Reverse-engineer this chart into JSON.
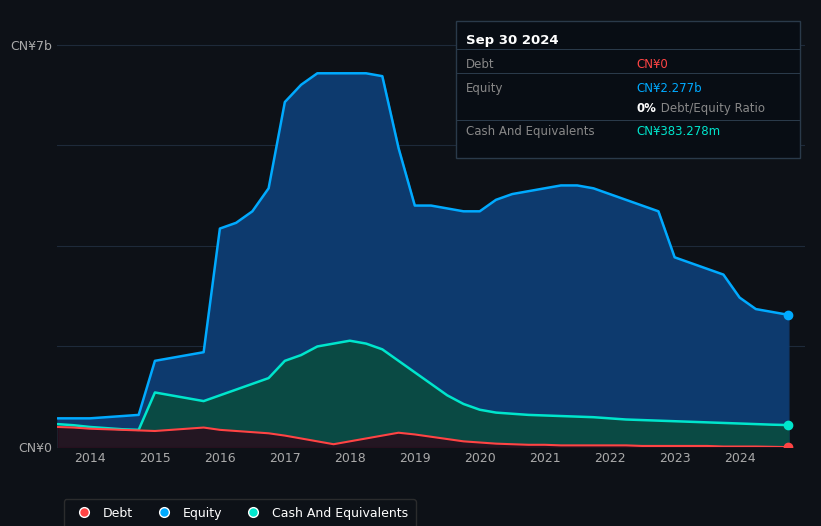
{
  "background_color": "#0d1117",
  "plot_bg_color": "#0d1117",
  "ylabel_top": "CN¥7b",
  "ylabel_bottom": "CN¥0",
  "x_ticks": [
    2014,
    2015,
    2016,
    2017,
    2018,
    2019,
    2020,
    2021,
    2022,
    2023,
    2024
  ],
  "x_min": 2013.5,
  "x_max": 2025.0,
  "y_min": 0,
  "y_max": 7.5,
  "grid_color": "#1e2a3a",
  "equity_color": "#00aaff",
  "equity_fill": "#0d3a6e",
  "debt_color": "#ff4444",
  "debt_fill": "#2a0a1a",
  "cash_color": "#00e5cc",
  "cash_fill": "#0a4a44",
  "years": [
    2013.5,
    2013.75,
    2014.0,
    2014.25,
    2014.5,
    2014.75,
    2015.0,
    2015.25,
    2015.5,
    2015.75,
    2016.0,
    2016.25,
    2016.5,
    2016.75,
    2017.0,
    2017.25,
    2017.5,
    2017.75,
    2018.0,
    2018.25,
    2018.5,
    2018.75,
    2019.0,
    2019.25,
    2019.5,
    2019.75,
    2020.0,
    2020.25,
    2020.5,
    2020.75,
    2021.0,
    2021.25,
    2021.5,
    2021.75,
    2022.0,
    2022.25,
    2022.5,
    2022.75,
    2023.0,
    2023.25,
    2023.5,
    2023.75,
    2024.0,
    2024.25,
    2024.5,
    2024.75
  ],
  "equity": [
    0.5,
    0.5,
    0.5,
    0.52,
    0.54,
    0.56,
    1.5,
    1.55,
    1.6,
    1.65,
    3.8,
    3.9,
    4.1,
    4.5,
    6.0,
    6.3,
    6.5,
    6.5,
    6.5,
    6.5,
    6.45,
    5.2,
    4.2,
    4.2,
    4.15,
    4.1,
    4.1,
    4.3,
    4.4,
    4.45,
    4.5,
    4.55,
    4.55,
    4.5,
    4.4,
    4.3,
    4.2,
    4.1,
    3.3,
    3.2,
    3.1,
    3.0,
    2.6,
    2.4,
    2.35,
    2.3
  ],
  "debt": [
    0.35,
    0.34,
    0.32,
    0.31,
    0.3,
    0.29,
    0.28,
    0.3,
    0.32,
    0.34,
    0.3,
    0.28,
    0.26,
    0.24,
    0.2,
    0.15,
    0.1,
    0.05,
    0.1,
    0.15,
    0.2,
    0.25,
    0.22,
    0.18,
    0.14,
    0.1,
    0.08,
    0.06,
    0.05,
    0.04,
    0.04,
    0.03,
    0.03,
    0.03,
    0.03,
    0.03,
    0.02,
    0.02,
    0.02,
    0.02,
    0.02,
    0.01,
    0.01,
    0.01,
    0.005,
    0.0
  ],
  "cash": [
    0.4,
    0.38,
    0.35,
    0.33,
    0.31,
    0.3,
    0.95,
    0.9,
    0.85,
    0.8,
    0.9,
    1.0,
    1.1,
    1.2,
    1.5,
    1.6,
    1.75,
    1.8,
    1.85,
    1.8,
    1.7,
    1.5,
    1.3,
    1.1,
    0.9,
    0.75,
    0.65,
    0.6,
    0.58,
    0.56,
    0.55,
    0.54,
    0.53,
    0.52,
    0.5,
    0.48,
    0.47,
    0.46,
    0.45,
    0.44,
    0.43,
    0.42,
    0.41,
    0.4,
    0.39,
    0.383
  ],
  "tooltip": {
    "title": "Sep 30 2024",
    "debt_label": "Debt",
    "debt_value": "CN¥0",
    "equity_label": "Equity",
    "equity_value": "CN¥2.277b",
    "ratio_bold": "0%",
    "ratio_text": " Debt/Equity Ratio",
    "cash_label": "Cash And Equivalents",
    "cash_value": "CN¥383.278m"
  },
  "legend_labels": [
    "Debt",
    "Equity",
    "Cash And Equivalents"
  ]
}
